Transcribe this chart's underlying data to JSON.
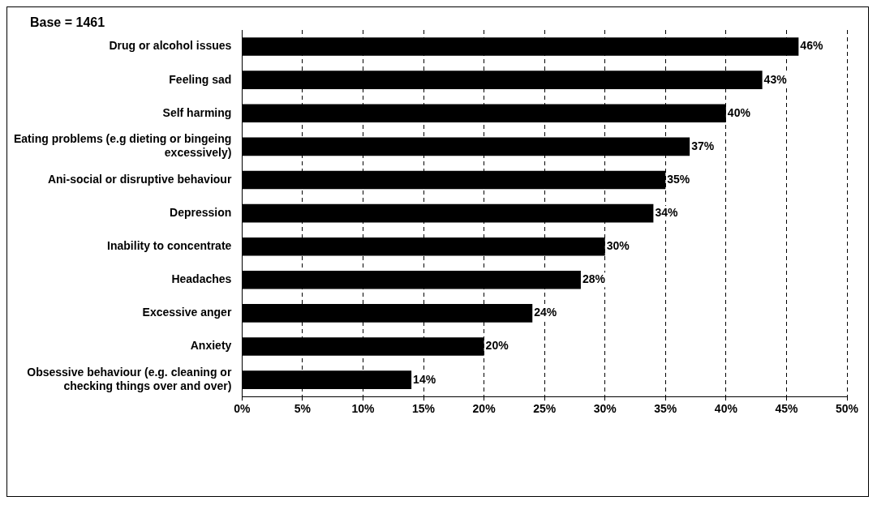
{
  "chart_data": {
    "type": "bar",
    "orientation": "horizontal",
    "categories": [
      "Drug or alcohol issues",
      "Feeling sad",
      "Self harming",
      "Eating problems (e.g dieting or bingeing excessively)",
      "Ani-social or disruptive behaviour",
      "Depression",
      "Inability to concentrate",
      "Headaches",
      "Excessive anger",
      "Anxiety",
      "Obsessive behaviour (e.g. cleaning or checking things over and over)"
    ],
    "values": [
      46,
      43,
      40,
      37,
      35,
      34,
      30,
      28,
      24,
      20,
      14
    ],
    "value_labels": [
      "46%",
      "43%",
      "40%",
      "37%",
      "35%",
      "34%",
      "30%",
      "28%",
      "24%",
      "20%",
      "14%"
    ],
    "color": "#000000",
    "xlim": [
      0,
      50
    ],
    "xticks": [
      {
        "value": 0,
        "label": "0%"
      },
      {
        "value": 5,
        "label": "5%"
      },
      {
        "value": 10,
        "label": "10%"
      },
      {
        "value": 15,
        "label": "15%"
      },
      {
        "value": 20,
        "label": "20%"
      },
      {
        "value": 25,
        "label": "25%"
      },
      {
        "value": 30,
        "label": "30%"
      },
      {
        "value": 35,
        "label": "35%"
      },
      {
        "value": 40,
        "label": "40%"
      },
      {
        "value": 45,
        "label": "45%"
      },
      {
        "value": 50,
        "label": "50%"
      }
    ],
    "grid": "x",
    "line_style": "dashed",
    "legend": false,
    "annotations": [
      "Base = 1461"
    ]
  }
}
